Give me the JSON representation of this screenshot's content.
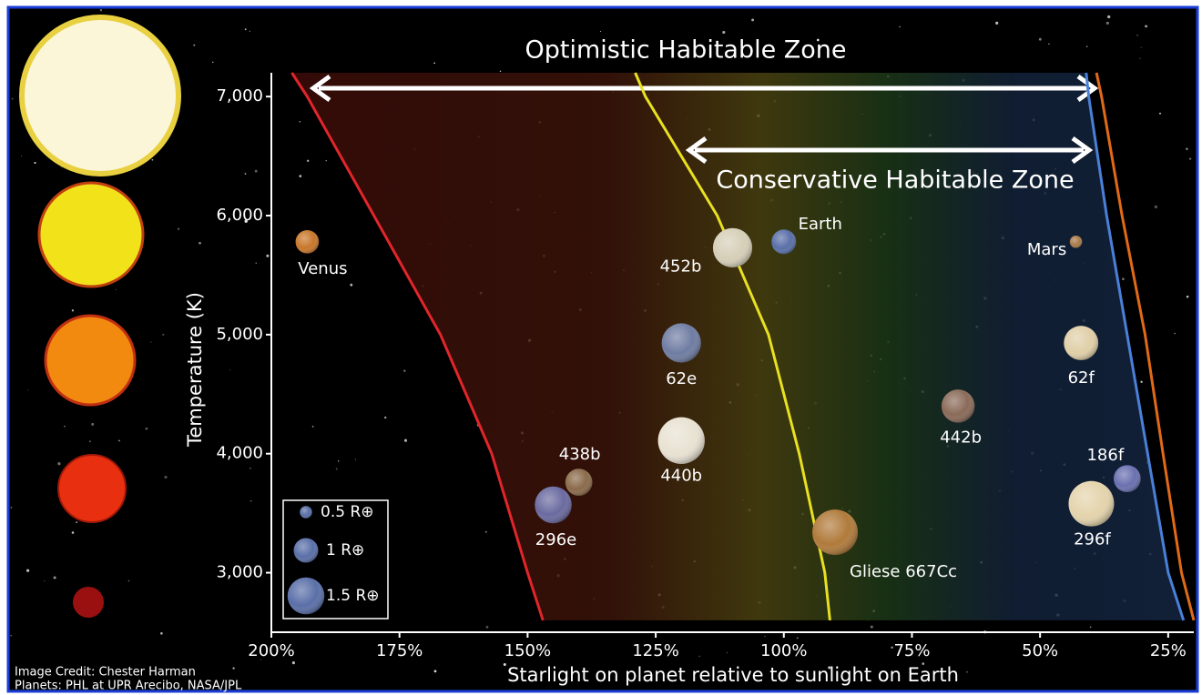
{
  "chart_data": {
    "type": "scatter",
    "annotations": [
      "Optimistic Habitable Zone",
      "Conservative Habitable Zone"
    ],
    "x_label": "Starlight on planet relative to sunlight on Earth",
    "y_label": "Temperature (K)",
    "xlim": [
      200,
      20
    ],
    "ylim": [
      2500,
      7200
    ],
    "xticks": [
      {
        "value": 200,
        "label": "200%"
      },
      {
        "value": 175,
        "label": "175%"
      },
      {
        "value": 150,
        "label": "150%"
      },
      {
        "value": 125,
        "label": "125%"
      },
      {
        "value": 100,
        "label": "100%"
      },
      {
        "value": 75,
        "label": "75%"
      },
      {
        "value": 50,
        "label": "50%"
      },
      {
        "value": 25,
        "label": "25%"
      }
    ],
    "yticks": [
      {
        "value": 3000,
        "label": "3,000"
      },
      {
        "value": 4000,
        "label": "4,000"
      },
      {
        "value": 5000,
        "label": "5,000"
      },
      {
        "value": 6000,
        "label": "6,000"
      },
      {
        "value": 7000,
        "label": "7,000"
      }
    ],
    "labels": [
      "Venus",
      "452b",
      "Earth",
      "Mars",
      "62e",
      "62f",
      "442b",
      "440b",
      "438b",
      "296e",
      "186f",
      "296f",
      "Gliese 667Cc"
    ],
    "x": [
      193,
      110,
      100,
      43,
      120,
      42,
      66,
      120,
      140,
      145,
      33,
      40,
      90
    ],
    "y": [
      5780,
      5730,
      5780,
      5780,
      4930,
      4930,
      4400,
      4110,
      3760,
      3570,
      3790,
      3580,
      3340
    ],
    "sizes": [
      0.95,
      1.6,
      1.0,
      0.5,
      1.6,
      1.4,
      1.35,
      1.9,
      1.1,
      1.5,
      1.1,
      1.85,
      1.85
    ],
    "colors": [
      "#c8772a",
      "#d6cfb8",
      "#5a6fa8",
      "#a87a4a",
      "#6f7ca2",
      "#e0cfa8",
      "#8a6a58",
      "#e8e2d2",
      "#8a6a4a",
      "#6a6aa0",
      "#6a70b0",
      "#e4d4ac",
      "#b07a3a"
    ],
    "size_legend": [
      {
        "label": "0.5 R⊕",
        "value": 0.5
      },
      {
        "label": "1 R⊕",
        "value": 1
      },
      {
        "label": "1.5 R⊕",
        "value": 1.5
      }
    ],
    "boundaries": [
      {
        "color": "#e0262a",
        "x": [
          196,
          193,
          180,
          167,
          157,
          150,
          147
        ],
        "y": [
          7200,
          7000,
          6000,
          5000,
          4000,
          3000,
          2600
        ]
      },
      {
        "color": "#e8e020",
        "x": [
          129,
          127,
          113,
          103,
          97,
          92,
          91
        ],
        "y": [
          7200,
          7000,
          6000,
          5000,
          4000,
          3000,
          2600
        ]
      },
      {
        "color": "#4a80d8",
        "x": [
          41,
          40.5,
          37,
          33,
          29,
          25,
          22
        ],
        "y": [
          7200,
          7000,
          6000,
          5000,
          4000,
          3000,
          2600
        ]
      },
      {
        "color": "#e06a18",
        "x": [
          39,
          38,
          34,
          29.5,
          26,
          22.4,
          20
        ],
        "y": [
          7200,
          7000,
          6000,
          5000,
          4000,
          3000,
          2600
        ]
      }
    ],
    "credits": [
      "Image Credit: Chester Harman",
      "Planets:  PHL at UPR Arecibo, NASA/JPL"
    ]
  }
}
